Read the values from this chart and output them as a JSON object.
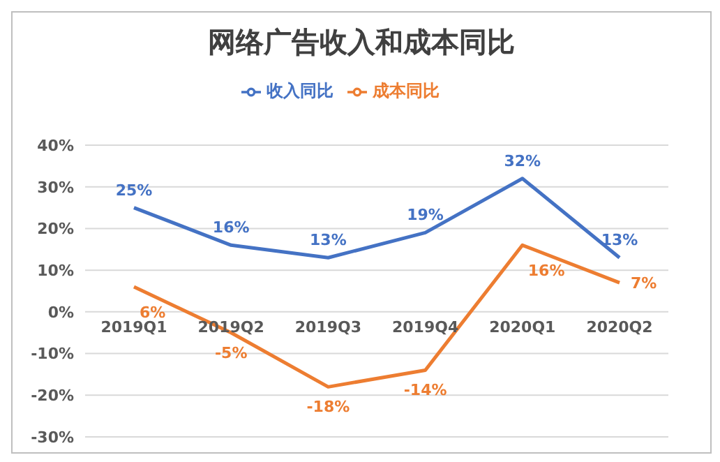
{
  "chart_data": {
    "type": "line",
    "title": "网络广告收入和成本同比",
    "categories": [
      "2019Q1",
      "2019Q2",
      "2019Q3",
      "2019Q4",
      "2020Q1",
      "2020Q2"
    ],
    "series": [
      {
        "name": "收入同比",
        "color": "#4472c4",
        "values": [
          25,
          16,
          13,
          19,
          32,
          13
        ],
        "value_labels": [
          "25%",
          "16%",
          "13%",
          "19%",
          "32%",
          "13%"
        ]
      },
      {
        "name": "成本同比",
        "color": "#ed7d31",
        "values": [
          6,
          -5,
          -18,
          -14,
          16,
          7
        ],
        "value_labels": [
          "6%",
          "-5%",
          "-18%",
          "-14%",
          "16%",
          "7%"
        ]
      }
    ],
    "ylim": [
      -30,
      40
    ],
    "yticks": [
      {
        "value": -30,
        "label": "-30%"
      },
      {
        "value": -20,
        "label": "-20%"
      },
      {
        "value": -10,
        "label": "-10%"
      },
      {
        "value": 0,
        "label": "0%"
      },
      {
        "value": 10,
        "label": "10%"
      },
      {
        "value": 20,
        "label": "20%"
      },
      {
        "value": 30,
        "label": "30%"
      },
      {
        "value": 40,
        "label": "40%"
      }
    ],
    "grid": "y",
    "legend": "top",
    "marker": "none",
    "line_style": "solid"
  }
}
